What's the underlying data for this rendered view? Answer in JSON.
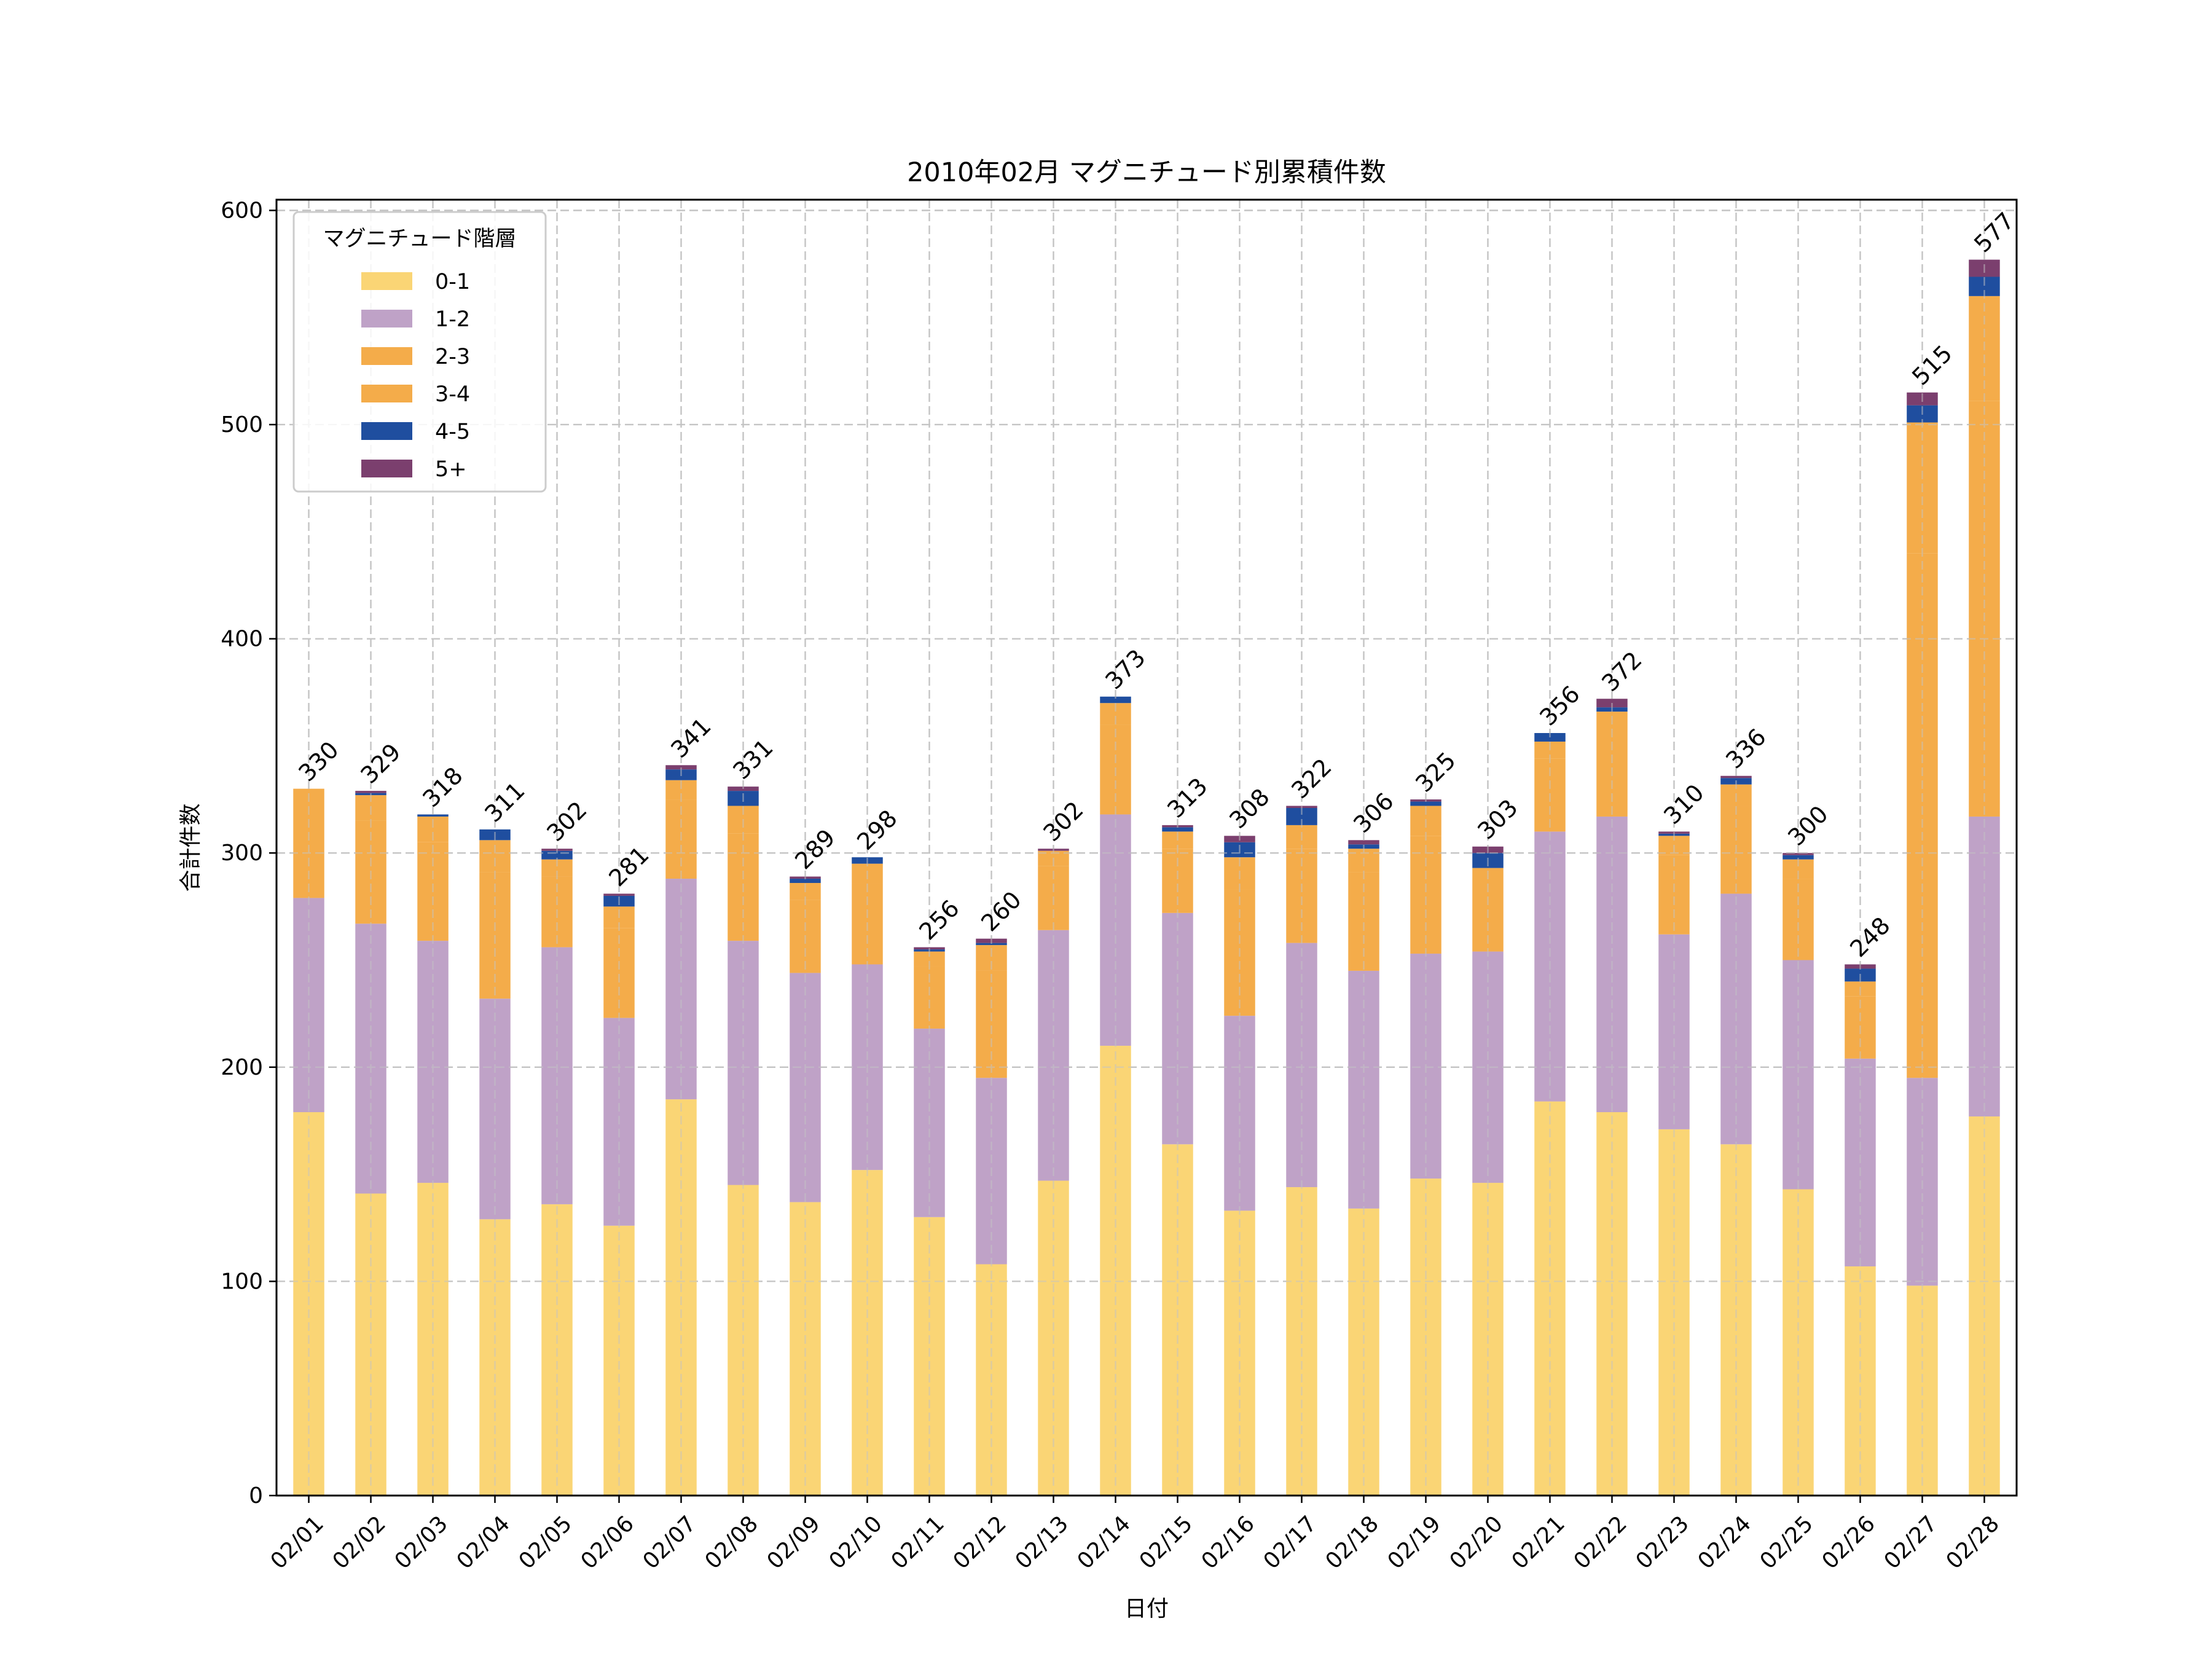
{
  "chart_data": {
    "type": "bar",
    "stacked": true,
    "title": "2010年02月 マグニチュード別累積件数",
    "xlabel": "日付",
    "ylabel": "合計件数",
    "ylim": [
      0,
      605
    ],
    "yticks": [
      0,
      100,
      200,
      300,
      400,
      500,
      600
    ],
    "grid": true,
    "legend": {
      "title": "マグニチュード階層",
      "position": "top-left"
    },
    "categories": [
      "02/01",
      "02/02",
      "02/03",
      "02/04",
      "02/05",
      "02/06",
      "02/07",
      "02/08",
      "02/09",
      "02/10",
      "02/11",
      "02/12",
      "02/13",
      "02/14",
      "02/15",
      "02/16",
      "02/17",
      "02/18",
      "02/19",
      "02/20",
      "02/21",
      "02/22",
      "02/23",
      "02/24",
      "02/25",
      "02/26",
      "02/27",
      "02/28"
    ],
    "series": [
      {
        "name": "0-1",
        "color": "#FAD575",
        "values": [
          179,
          141,
          146,
          129,
          136,
          126,
          185,
          145,
          137,
          152,
          130,
          108,
          147,
          210,
          164,
          133,
          144,
          134,
          148,
          146,
          184,
          179,
          171,
          164,
          143,
          107,
          98,
          177
        ]
      },
      {
        "name": "1-2",
        "color": "#BFA2C7",
        "values": [
          100,
          126,
          113,
          103,
          120,
          97,
          103,
          114,
          107,
          96,
          88,
          87,
          117,
          108,
          108,
          91,
          114,
          111,
          105,
          108,
          126,
          138,
          91,
          117,
          107,
          97,
          97,
          140
        ]
      },
      {
        "name": "2-3",
        "color": "#F4AC4A",
        "values": [
          41,
          48,
          46,
          59,
          33,
          42,
          37,
          50,
          34,
          38,
          29,
          50,
          30,
          42,
          30,
          59,
          44,
          46,
          55,
          31,
          34,
          39,
          37,
          41,
          38,
          29,
          245,
          194
        ]
      },
      {
        "name": "3-4",
        "color": "#F4AC4A",
        "values": [
          10,
          12,
          12,
          15,
          8,
          10,
          9,
          13,
          8,
          9,
          7,
          12,
          7,
          10,
          8,
          15,
          11,
          11,
          14,
          8,
          8,
          10,
          9,
          10,
          9,
          7,
          61,
          49
        ]
      },
      {
        "name": "4-5",
        "color": "#1F4E9F",
        "values": [
          0,
          1,
          1,
          5,
          4,
          5,
          5,
          7,
          2,
          3,
          1,
          1,
          0,
          3,
          2,
          7,
          8,
          2,
          2,
          7,
          4,
          2,
          1,
          3,
          2,
          6,
          8,
          9
        ]
      },
      {
        "name": "5+",
        "color": "#7B3F6E",
        "values": [
          0,
          1,
          0,
          0,
          1,
          1,
          2,
          2,
          1,
          0,
          1,
          2,
          1,
          0,
          1,
          3,
          1,
          2,
          1,
          3,
          0,
          4,
          1,
          1,
          1,
          2,
          6,
          8
        ]
      }
    ],
    "totals": [
      330,
      329,
      318,
      311,
      302,
      281,
      341,
      331,
      289,
      298,
      256,
      260,
      302,
      373,
      313,
      308,
      322,
      306,
      325,
      303,
      356,
      372,
      310,
      336,
      300,
      248,
      515,
      577
    ]
  }
}
